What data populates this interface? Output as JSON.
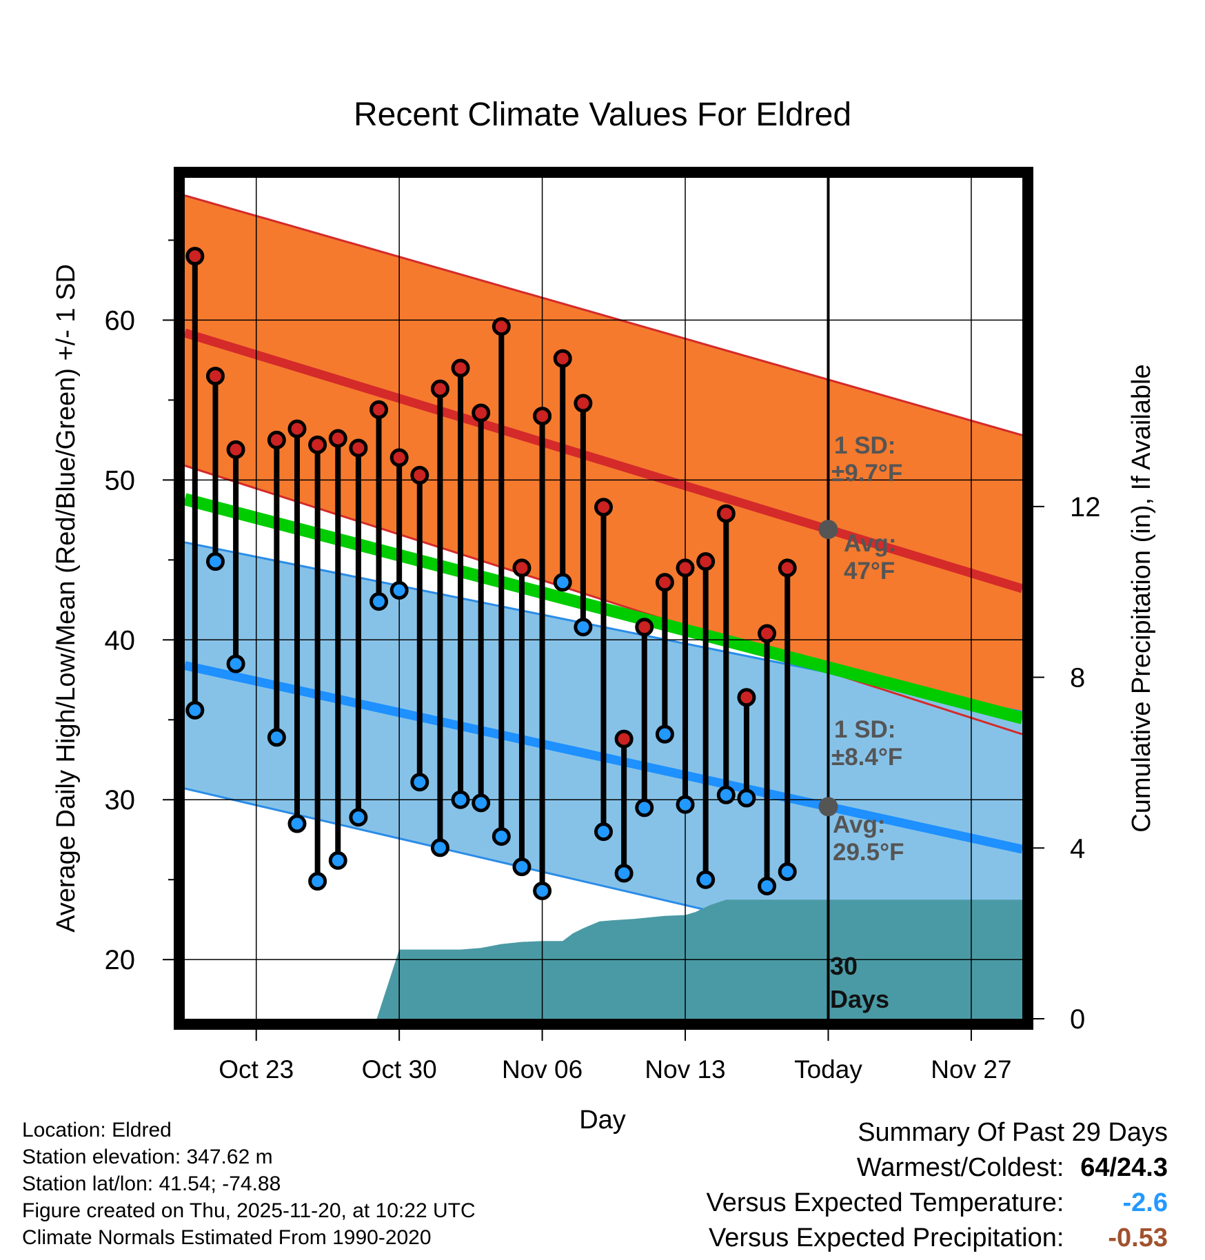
{
  "chart_data": {
    "type": "line",
    "title": "Recent Climate Values For Eldred",
    "xlabel": "Day",
    "ylabel": "Average Daily High/Low/Mean (Red/Blue/Green) +/- 1 SD",
    "y2label": "Cumulative Precipitation (in), If Available",
    "x_range_days": [
      -28.5,
      12.5
    ],
    "ylim": [
      16.3,
      68.9
    ],
    "y2lim": [
      0,
      19.7
    ],
    "y_ticks": [
      20,
      30,
      40,
      50,
      60
    ],
    "y2_ticks": [
      0,
      4,
      8,
      12
    ],
    "x_tick_labels": [
      {
        "day": -25,
        "label": "Oct 23"
      },
      {
        "day": -18,
        "label": "Oct 30"
      },
      {
        "day": -11,
        "label": "Nov 06"
      },
      {
        "day": -4,
        "label": "Nov 13"
      },
      {
        "day": 3,
        "label": "Today"
      },
      {
        "day": 10,
        "label": "Nov 27"
      }
    ],
    "today_day": 3,
    "normals": {
      "high_avg": {
        "start": 59.2,
        "end": 43.2
      },
      "high_sd_upper": {
        "start": 67.8,
        "end": 52.8
      },
      "high_sd_lower": {
        "start": 50.9,
        "end": 34.1
      },
      "low_avg": {
        "start": 38.4,
        "end": 26.9
      },
      "low_sd_upper": {
        "start": 46.1,
        "end": 35.5
      },
      "low_sd_lower": {
        "start": 30.7,
        "end": 18.5
      },
      "mean_avg": {
        "start": 48.8,
        "end": 35.1
      }
    },
    "series": [
      {
        "name": "Daily High",
        "color": "#cc2222",
        "days": [
          -28,
          -27,
          -26,
          -24,
          -23,
          -22,
          -21,
          -20,
          -19,
          -18,
          -17,
          -16,
          -15,
          -14,
          -13,
          -12,
          -11,
          -10,
          -9,
          -8,
          -7,
          -6,
          -5,
          -4,
          -3,
          -2,
          -1,
          0,
          1
        ],
        "values": [
          64.0,
          56.5,
          51.9,
          52.5,
          53.2,
          52.2,
          52.6,
          52.0,
          54.4,
          51.4,
          50.3,
          55.7,
          57.0,
          54.2,
          59.6,
          44.5,
          54.0,
          57.6,
          54.8,
          48.3,
          33.8,
          40.8,
          43.6,
          44.5,
          44.9,
          47.9,
          36.4,
          40.4,
          44.5
        ]
      },
      {
        "name": "Daily Low",
        "color": "#2299ff",
        "days": [
          -28,
          -27,
          -26,
          -24,
          -23,
          -22,
          -21,
          -20,
          -19,
          -18,
          -17,
          -16,
          -15,
          -14,
          -13,
          -12,
          -11,
          -10,
          -9,
          -8,
          -7,
          -6,
          -5,
          -4,
          -3,
          -2,
          -1,
          0,
          1
        ],
        "values": [
          35.6,
          44.9,
          38.5,
          33.9,
          28.5,
          24.9,
          26.2,
          28.9,
          42.4,
          43.1,
          31.1,
          27.0,
          30.0,
          29.8,
          27.7,
          25.8,
          24.3,
          43.6,
          40.8,
          28.0,
          25.4,
          29.5,
          34.1,
          29.7,
          25.0,
          30.3,
          30.1,
          24.6,
          25.5
        ]
      },
      {
        "name": "Cumulative Precipitation",
        "color": "#4a9aa5",
        "days": [
          -19.1,
          -18.0,
          -15.0,
          -14.0,
          -13.0,
          -12.0,
          -11.0,
          -10.0,
          -9.5,
          -9.0,
          -8.2,
          -7.5,
          -6.5,
          -5.0,
          -4.0,
          -3.5,
          -2.8,
          -2.0,
          12.5
        ],
        "values": [
          0.0,
          1.62,
          1.62,
          1.66,
          1.75,
          1.8,
          1.82,
          1.82,
          2.0,
          2.12,
          2.28,
          2.31,
          2.34,
          2.41,
          2.43,
          2.5,
          2.66,
          2.79,
          2.79
        ]
      }
    ],
    "annotations": {
      "high_sd_label": "1 SD:",
      "high_sd_value": "±9.7°F",
      "high_avg_label": "Avg:",
      "high_avg_value": "47°F",
      "low_sd_label": "1 SD:",
      "low_sd_value": "±8.4°F",
      "low_avg_label": "Avg:",
      "low_avg_value": "29.5°F",
      "period_number": "30",
      "period_unit": "Days"
    }
  },
  "footer": {
    "location": "Location: Eldred",
    "elevation": "Station elevation: 347.62 m",
    "latlon": "Station lat/lon: 41.54; -74.88",
    "created": "Figure created on Thu, 2025-11-20, at 10:22 UTC",
    "normals": "Climate Normals Estimated From 1990-2020"
  },
  "summary": {
    "title": "Summary Of Past 29 Days",
    "warmest_label": "Warmest/Coldest:",
    "warmest_value": "64/24.3",
    "temp_label": "Versus Expected Temperature:",
    "temp_value": "-2.6",
    "temp_color": "#2299ff",
    "precip_label": "Versus Expected Precipitation:",
    "precip_value": "-0.53",
    "precip_color": "#a0522d"
  }
}
